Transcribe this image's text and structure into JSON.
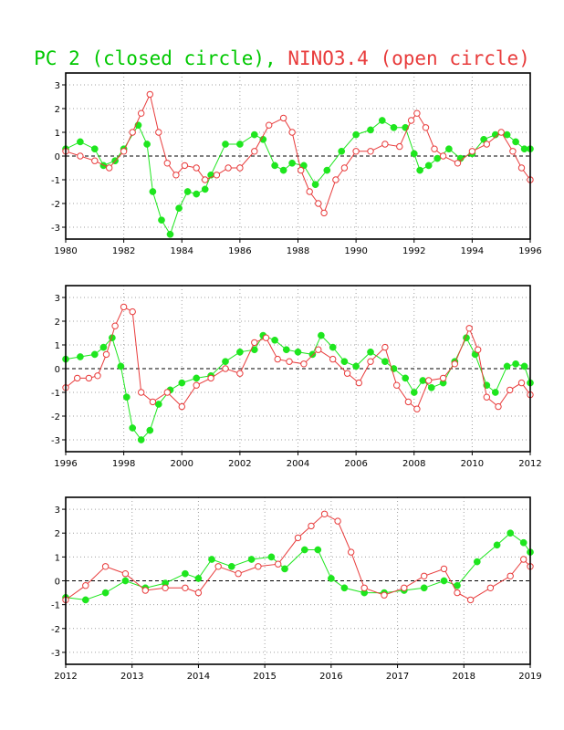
{
  "title": {
    "part1": "PC 2 (closed circle),",
    "part2": "NINO3.4 (open circle)"
  },
  "colors": {
    "pc2": "#1ee61e",
    "nino34": "#e83c3c",
    "axis": "#000000",
    "grid": "#a0a0a0"
  },
  "chart_data": [
    {
      "type": "line",
      "title": "",
      "xlabel": "",
      "ylabel": "",
      "xlim": [
        1980,
        1996
      ],
      "ylim": [
        -3.5,
        3.5
      ],
      "x_tick_labels": [
        "1980",
        "1982",
        "1984",
        "1986",
        "1988",
        "1990",
        "1992",
        "1994",
        "1996"
      ],
      "y_tick_labels": [
        "-3",
        "-2",
        "-1",
        "0",
        "1",
        "2",
        "3"
      ],
      "grid": true,
      "zero_line": "dashed",
      "series": [
        {
          "name": "PC 2",
          "marker": "closed circle",
          "x": [
            1980.0,
            1980.5,
            1981.0,
            1981.3,
            1981.7,
            1982.0,
            1982.5,
            1982.8,
            1983.0,
            1983.3,
            1983.6,
            1983.9,
            1984.2,
            1984.5,
            1984.8,
            1985.0,
            1985.5,
            1986.0,
            1986.5,
            1986.8,
            1987.2,
            1987.5,
            1987.8,
            1988.2,
            1988.6,
            1989.0,
            1989.5,
            1990.0,
            1990.5,
            1990.9,
            1991.3,
            1991.7,
            1992.0,
            1992.2,
            1992.5,
            1992.8,
            1993.2,
            1993.6,
            1994.0,
            1994.4,
            1994.8,
            1995.2,
            1995.5,
            1995.8,
            1996.0
          ],
          "y": [
            0.3,
            0.6,
            0.3,
            -0.4,
            -0.2,
            0.3,
            1.3,
            0.5,
            -1.5,
            -2.7,
            -3.3,
            -2.2,
            -1.5,
            -1.6,
            -1.4,
            -0.8,
            0.5,
            0.5,
            0.9,
            0.7,
            -0.4,
            -0.6,
            -0.3,
            -0.4,
            -1.2,
            -0.6,
            0.2,
            0.9,
            1.1,
            1.5,
            1.2,
            1.2,
            0.1,
            -0.6,
            -0.4,
            -0.1,
            0.3,
            -0.1,
            0.1,
            0.7,
            0.9,
            0.9,
            0.6,
            0.3,
            0.3
          ]
        },
        {
          "name": "NINO3.4",
          "marker": "open circle",
          "x": [
            1980.0,
            1980.5,
            1981.0,
            1981.5,
            1982.0,
            1982.3,
            1982.6,
            1982.9,
            1983.2,
            1983.5,
            1983.8,
            1984.1,
            1984.5,
            1984.8,
            1985.2,
            1985.6,
            1986.0,
            1986.5,
            1987.0,
            1987.5,
            1987.8,
            1988.1,
            1988.4,
            1988.7,
            1988.9,
            1989.3,
            1989.6,
            1990.0,
            1990.5,
            1991.0,
            1991.5,
            1991.9,
            1992.1,
            1992.4,
            1992.7,
            1993.0,
            1993.5,
            1994.0,
            1994.5,
            1995.0,
            1995.4,
            1995.7,
            1996.0
          ],
          "y": [
            0.2,
            0.0,
            -0.2,
            -0.5,
            0.2,
            1.0,
            1.8,
            2.6,
            1.0,
            -0.3,
            -0.8,
            -0.4,
            -0.5,
            -1.0,
            -0.8,
            -0.5,
            -0.5,
            0.2,
            1.3,
            1.6,
            1.0,
            -0.6,
            -1.5,
            -2.0,
            -2.4,
            -1.0,
            -0.5,
            0.2,
            0.2,
            0.5,
            0.4,
            1.5,
            1.8,
            1.2,
            0.3,
            0.0,
            -0.3,
            0.2,
            0.5,
            1.0,
            0.2,
            -0.5,
            -1.0
          ]
        }
      ]
    },
    {
      "type": "line",
      "title": "",
      "xlabel": "",
      "ylabel": "",
      "xlim": [
        1996,
        2012
      ],
      "ylim": [
        -3.5,
        3.5
      ],
      "x_tick_labels": [
        "1996",
        "1998",
        "2000",
        "2002",
        "2004",
        "2006",
        "2008",
        "2010",
        "2012"
      ],
      "y_tick_labels": [
        "-3",
        "-2",
        "-1",
        "0",
        "1",
        "2",
        "3"
      ],
      "grid": true,
      "zero_line": "dashed",
      "series": [
        {
          "name": "PC 2",
          "marker": "closed circle",
          "x": [
            1996.0,
            1996.5,
            1997.0,
            1997.3,
            1997.6,
            1997.9,
            1998.1,
            1998.3,
            1998.6,
            1998.9,
            1999.2,
            1999.6,
            2000.0,
            2000.5,
            2001.0,
            2001.5,
            2002.0,
            2002.5,
            2002.8,
            2003.2,
            2003.6,
            2004.0,
            2004.5,
            2004.8,
            2005.2,
            2005.6,
            2006.0,
            2006.5,
            2007.0,
            2007.3,
            2007.7,
            2008.0,
            2008.3,
            2008.6,
            2009.0,
            2009.4,
            2009.8,
            2010.1,
            2010.5,
            2010.8,
            2011.2,
            2011.5,
            2011.8,
            2012.0
          ],
          "y": [
            0.4,
            0.5,
            0.6,
            0.9,
            1.3,
            0.1,
            -1.2,
            -2.5,
            -3.0,
            -2.6,
            -1.5,
            -0.9,
            -0.6,
            -0.4,
            -0.3,
            0.3,
            0.7,
            0.8,
            1.4,
            1.2,
            0.8,
            0.7,
            0.6,
            1.4,
            0.9,
            0.3,
            0.1,
            0.7,
            0.3,
            0.0,
            -0.4,
            -1.0,
            -0.5,
            -0.8,
            -0.6,
            0.3,
            1.3,
            0.6,
            -0.7,
            -1.0,
            0.1,
            0.2,
            0.1,
            -0.6
          ]
        },
        {
          "name": "NINO3.4",
          "marker": "open circle",
          "x": [
            1996.0,
            1996.4,
            1996.8,
            1997.1,
            1997.4,
            1997.7,
            1998.0,
            1998.3,
            1998.6,
            1999.0,
            1999.5,
            2000.0,
            2000.5,
            2001.0,
            2001.5,
            2002.0,
            2002.5,
            2002.9,
            2003.3,
            2003.7,
            2004.2,
            2004.7,
            2005.2,
            2005.7,
            2006.1,
            2006.5,
            2007.0,
            2007.4,
            2007.8,
            2008.1,
            2008.5,
            2009.0,
            2009.4,
            2009.9,
            2010.2,
            2010.5,
            2010.9,
            2011.3,
            2011.7,
            2012.0
          ],
          "y": [
            -0.8,
            -0.4,
            -0.4,
            -0.3,
            0.6,
            1.8,
            2.6,
            2.4,
            -1.0,
            -1.4,
            -1.0,
            -1.6,
            -0.7,
            -0.4,
            0.0,
            -0.2,
            1.1,
            1.3,
            0.4,
            0.3,
            0.2,
            0.8,
            0.4,
            -0.2,
            -0.6,
            0.3,
            0.9,
            -0.7,
            -1.4,
            -1.7,
            -0.5,
            -0.4,
            0.2,
            1.7,
            0.8,
            -1.2,
            -1.6,
            -0.9,
            -0.6,
            -1.1
          ]
        }
      ]
    },
    {
      "type": "line",
      "title": "",
      "xlabel": "",
      "ylabel": "",
      "xlim": [
        2012,
        2019
      ],
      "ylim": [
        -3.5,
        3.5
      ],
      "x_tick_labels": [
        "2012",
        "2013",
        "2014",
        "2015",
        "2016",
        "2017",
        "2018",
        "2019"
      ],
      "y_tick_labels": [
        "-3",
        "-2",
        "-1",
        "0",
        "1",
        "2",
        "3"
      ],
      "grid": true,
      "zero_line": "dashed",
      "series": [
        {
          "name": "PC 2",
          "marker": "closed circle",
          "x": [
            2012.0,
            2012.3,
            2012.6,
            2012.9,
            2013.2,
            2013.5,
            2013.8,
            2014.0,
            2014.2,
            2014.5,
            2014.8,
            2015.1,
            2015.3,
            2015.6,
            2015.8,
            2016.0,
            2016.2,
            2016.5,
            2016.8,
            2017.1,
            2017.4,
            2017.7,
            2017.9,
            2018.2,
            2018.5,
            2018.7,
            2018.9,
            2019.0
          ],
          "y": [
            -0.7,
            -0.8,
            -0.5,
            0.0,
            -0.3,
            -0.1,
            0.3,
            0.1,
            0.9,
            0.6,
            0.9,
            1.0,
            0.5,
            1.3,
            1.3,
            0.1,
            -0.3,
            -0.5,
            -0.5,
            -0.4,
            -0.3,
            0.0,
            -0.2,
            0.8,
            1.5,
            2.0,
            1.6,
            1.2
          ]
        },
        {
          "name": "NINO3.4",
          "marker": "open circle",
          "x": [
            2012.0,
            2012.3,
            2012.6,
            2012.9,
            2013.2,
            2013.5,
            2013.8,
            2014.0,
            2014.3,
            2014.6,
            2014.9,
            2015.2,
            2015.5,
            2015.7,
            2015.9,
            2016.1,
            2016.3,
            2016.5,
            2016.8,
            2017.1,
            2017.4,
            2017.7,
            2017.9,
            2018.1,
            2018.4,
            2018.7,
            2018.9,
            2019.0
          ],
          "y": [
            -0.8,
            -0.2,
            0.6,
            0.3,
            -0.4,
            -0.3,
            -0.3,
            -0.5,
            0.6,
            0.3,
            0.6,
            0.7,
            1.8,
            2.3,
            2.8,
            2.5,
            1.2,
            -0.3,
            -0.6,
            -0.3,
            0.2,
            0.5,
            -0.5,
            -0.8,
            -0.3,
            0.2,
            0.9,
            0.6
          ]
        }
      ]
    }
  ]
}
